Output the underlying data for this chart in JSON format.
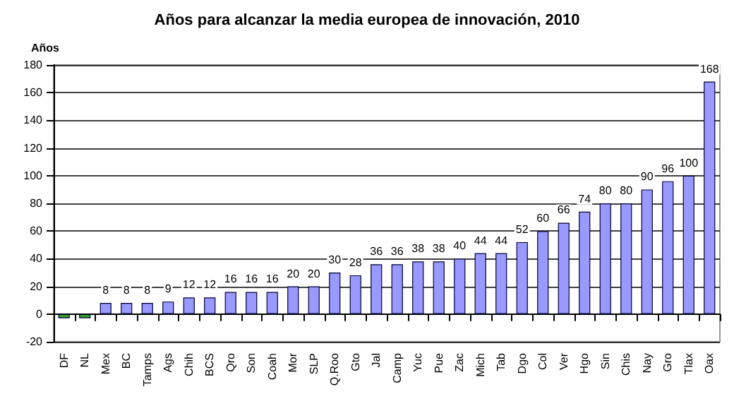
{
  "chart_data": {
    "type": "bar",
    "title": "Años para alcanzar la media europea de innovación, 2010",
    "ylabel": "Años",
    "categories": [
      "DF",
      "NL",
      "Mex",
      "BC",
      "Tamps",
      "Ags",
      "Chih",
      "BCS",
      "Qro",
      "Son",
      "Coah",
      "Mor",
      "SLP",
      "Q.Roo",
      "Gto",
      "Jal",
      "Camp",
      "Yuc",
      "Pue",
      "Zac",
      "Mich",
      "Tab",
      "Dgo",
      "Col",
      "Ver",
      "Hgo",
      "Sin",
      "Chis",
      "Nay",
      "Gro",
      "Tlax",
      "Oax"
    ],
    "values": [
      -3,
      -3,
      8,
      8,
      8,
      9,
      12,
      12,
      16,
      16,
      16,
      20,
      20,
      30,
      28,
      36,
      36,
      38,
      38,
      40,
      44,
      44,
      52,
      60,
      66,
      74,
      80,
      80,
      90,
      96,
      100,
      168
    ],
    "value_labels": [
      null,
      null,
      "8",
      "8",
      "8",
      "9",
      "12",
      "12",
      "16",
      "16",
      "16",
      "20",
      "20",
      "30",
      "28",
      "36",
      "36",
      "38",
      "38",
      "40",
      "44",
      "44",
      "52",
      "60",
      "66",
      "74",
      "80",
      "80",
      "90",
      "96",
      "100",
      "168"
    ],
    "colors": [
      "#33a02c",
      "#33a02c",
      "#9999ff",
      "#9999ff",
      "#9999ff",
      "#9999ff",
      "#9999ff",
      "#9999ff",
      "#9999ff",
      "#9999ff",
      "#9999ff",
      "#9999ff",
      "#9999ff",
      "#9999ff",
      "#9999ff",
      "#9999ff",
      "#9999ff",
      "#9999ff",
      "#9999ff",
      "#9999ff",
      "#9999ff",
      "#9999ff",
      "#9999ff",
      "#9999ff",
      "#9999ff",
      "#9999ff",
      "#9999ff",
      "#9999ff",
      "#9999ff",
      "#9999ff",
      "#9999ff",
      "#9999ff"
    ],
    "ylim": [
      -20,
      180
    ],
    "yticks": [
      -20,
      0,
      20,
      40,
      60,
      80,
      100,
      120,
      140,
      160,
      180
    ],
    "grid": "y"
  }
}
